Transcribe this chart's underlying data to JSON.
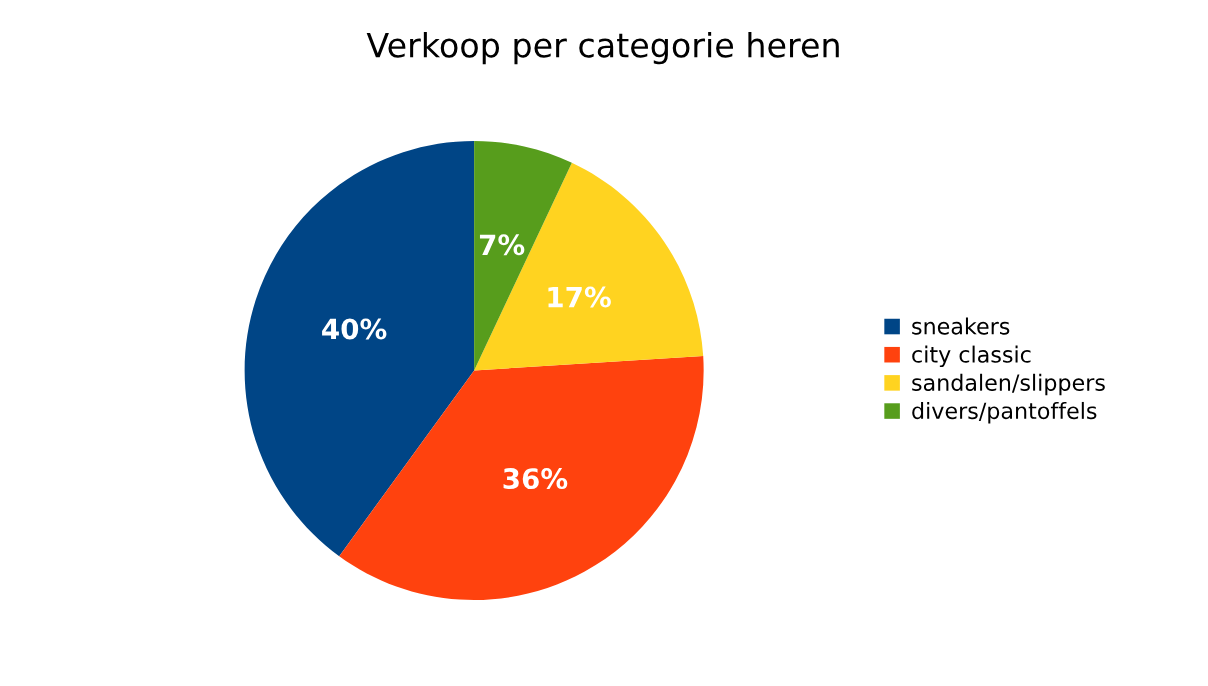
{
  "chart_data": {
    "type": "pie",
    "title": "Verkoop per categorie heren",
    "categories": [
      "sneakers",
      "city classic",
      "sandalen/slippers",
      "divers/pantoffels"
    ],
    "values": [
      40,
      36,
      17,
      7
    ],
    "colors": [
      "#004586",
      "#ff420e",
      "#ffd320",
      "#579d1c"
    ],
    "value_labels": [
      "40%",
      "36%",
      "17%",
      "7%"
    ],
    "legend": "right"
  }
}
